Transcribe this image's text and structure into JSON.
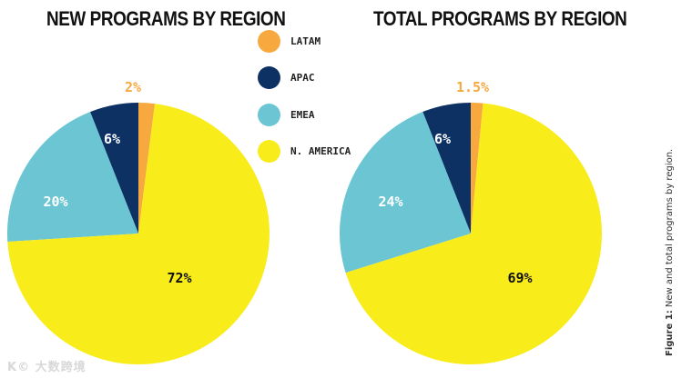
{
  "colors": {
    "latam": "#F7A940",
    "apac": "#0E3164",
    "emea": "#6BC5D3",
    "namerica": "#F8EC1B"
  },
  "legend": [
    {
      "label": "LATAM",
      "color": "#F7A940"
    },
    {
      "label": "APAC",
      "color": "#0E3164"
    },
    {
      "label": "EMEA",
      "color": "#6BC5D3"
    },
    {
      "label": "N. AMERICA",
      "color": "#F8EC1B"
    }
  ],
  "caption": {
    "label": "Figure 1:",
    "text": "New and total programs by region."
  },
  "watermark": "K© 大数跨境",
  "chart_data": [
    {
      "type": "pie",
      "title": "NEW PROGRAMS BY REGION",
      "categories": [
        "LATAM",
        "APAC",
        "EMEA",
        "N. AMERICA"
      ],
      "values": [
        2,
        6,
        20,
        72
      ],
      "labels": [
        "2%",
        "6%",
        "20%",
        "72%"
      ],
      "colors": [
        "#F7A940",
        "#0E3164",
        "#6BC5D3",
        "#F8EC1B"
      ]
    },
    {
      "type": "pie",
      "title": "TOTAL PROGRAMS BY REGION",
      "categories": [
        "LATAM",
        "APAC",
        "EMEA",
        "N. AMERICA"
      ],
      "values": [
        1.5,
        6,
        24,
        69
      ],
      "labels": [
        "1.5%",
        "6%",
        "24%",
        "69%"
      ],
      "colors": [
        "#F7A940",
        "#0E3164",
        "#6BC5D3",
        "#F8EC1B"
      ]
    }
  ]
}
